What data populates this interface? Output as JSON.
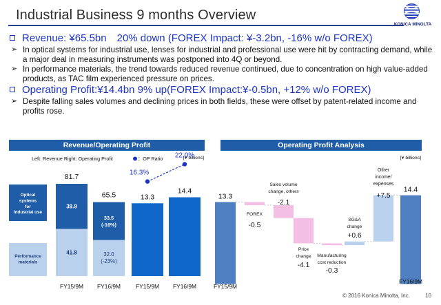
{
  "page": {
    "title": "Industrial Business 9 months Overview",
    "logo_text": "KONICA MINOLTA",
    "footer": "© 2016 Konica Minolta, Inc.",
    "page_number": "10",
    "colors": {
      "title_rule": "#243f8f",
      "headline_blue": "#1c34c8",
      "panel_blue": "#1f5da8",
      "optical_blue": "#1f5da8",
      "performance_blue": "#b9d1ec",
      "op_blue": "#0f67c9",
      "ratio_blue": "#1c34c8",
      "waterfall_blue": "#4f7fc0",
      "waterfall_pink": "#f4bfe4",
      "waterfall_light_blue": "#b9d1ec",
      "logo_blue": "#0d1d74"
    }
  },
  "summary": {
    "revenue_headline": "Revenue: ¥65.5bn　20% down (FOREX Impact: ¥-3.2bn, -16% w/o FOREX)",
    "revenue_bullets": [
      "In optical systems for industrial use, lenses for industrial and professional use were hit by contracting demand, while a major deal in measuring instruments was postponed into 4Q or beyond.",
      "In performance materials, the trend towards reduced revenue continued, due to concentration on high value-added products, as TAC film experienced pressure on prices."
    ],
    "operating_profit_headline": "Operating Profit:¥14.4bn 9% up(FOREX Impact:¥-0.5bn, +12% w/o FOREX)",
    "operating_profit_bullets": [
      "Despite falling sales volumes and declining prices in both fields, these were offset by patent-related income and profits rose."
    ]
  },
  "chart_data": [
    {
      "type": "bar",
      "title": "Revenue/Operating Profit",
      "subtitle": "Left: Revenue  Right: Operating Profit",
      "ratio_legend": "：OP Ratio",
      "unit_label": "[¥ billions]",
      "series_labels": [
        "Optical systems for Industrial use",
        "Performance materials"
      ],
      "revenue": {
        "categories": [
          "FY15/9M",
          "FY16/9M"
        ],
        "totals": [
          81.7,
          65.5
        ],
        "totals_display": [
          "81.7",
          "65.5"
        ],
        "series": [
          {
            "name": "Optical systems for Industrial use",
            "values": [
              39.9,
              33.5
            ],
            "labels": [
              "39.9",
              "33.5\n(-16%)"
            ],
            "color": "#1f5da8"
          },
          {
            "name": "Performance materials",
            "values": [
              41.8,
              32.0
            ],
            "labels": [
              "41.8",
              "32.0\n(-23%)"
            ],
            "color": "#b9d1ec"
          }
        ]
      },
      "operating_profit": {
        "categories": [
          "FY15/9M",
          "FY16/9M"
        ],
        "values": [
          13.3,
          14.4
        ],
        "labels": [
          "13.3",
          "14.4"
        ],
        "color": "#0f67c9"
      },
      "op_ratio": {
        "categories": [
          "FY15/9M",
          "FY16/9M"
        ],
        "values": [
          16.3,
          22.0
        ],
        "labels": [
          "16.3%",
          "22.0%"
        ],
        "color": "#1c34c8"
      }
    },
    {
      "type": "bar",
      "title": "Operating Profit Analysis",
      "unit_label": "[¥ billions]",
      "start": {
        "label": "FY15/9M",
        "value": 13.3,
        "display": "13.3"
      },
      "steps": [
        {
          "label": "FOREX",
          "value": -0.5,
          "display": "-0.5",
          "color": "#f4bfe4"
        },
        {
          "label": "Sales volume\nchange, others",
          "value": -2.1,
          "display": "-2.1",
          "color": "#f4bfe4"
        },
        {
          "label": "Price\nchange",
          "value": -4.1,
          "display": "-4.1",
          "color": "#f4bfe4"
        },
        {
          "label": "Manufacturing\ncost reduction",
          "value": -0.3,
          "display": "-0.3",
          "color": "#f4bfe4"
        },
        {
          "label": "SG&A\nchange",
          "value": 0.6,
          "display": "+0.6",
          "color": "#b9d1ec"
        },
        {
          "label": "Other\nincome/\nexpenses",
          "value": 7.5,
          "display": "+7.5",
          "color": "#b9d1ec"
        }
      ],
      "end": {
        "label": "FY16/9M",
        "value": 14.4,
        "display": "14.4"
      }
    }
  ]
}
